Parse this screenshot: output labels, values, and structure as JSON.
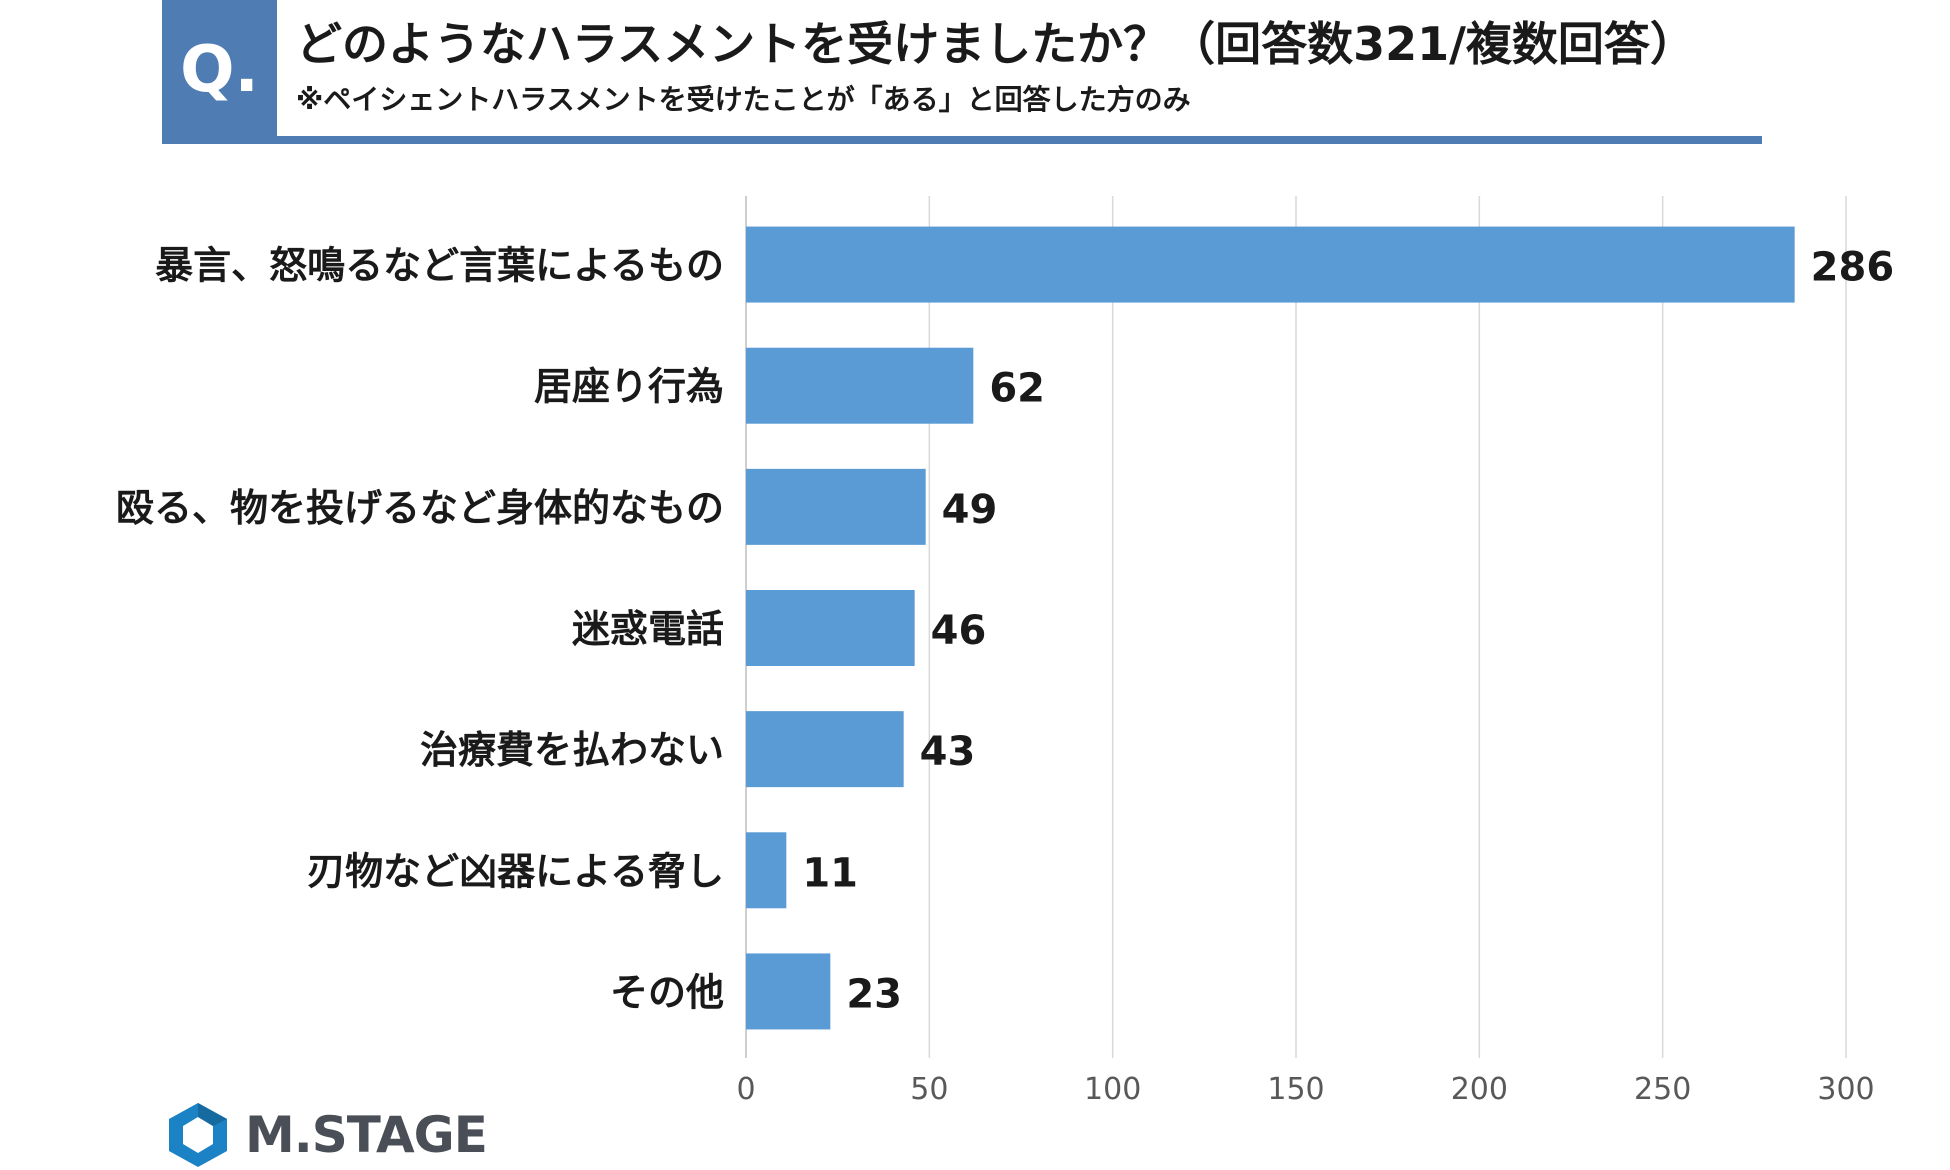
{
  "header": {
    "q_label": "Q.",
    "title": "どのようなハラスメントを受けましたか？（回答数321/複数回答）",
    "subtitle": "※ペイシェントハラスメントを受けたことが「ある」と回答した方のみ"
  },
  "chart_data": {
    "type": "bar",
    "orientation": "horizontal",
    "categories": [
      "暴言、怒鳴るなど言葉によるもの",
      "居座り行為",
      "殴る、物を投げるなど身体的なもの",
      "迷惑電話",
      "治療費を払わない",
      "刃物など凶器による脅し",
      "その他"
    ],
    "values": [
      286,
      62,
      49,
      46,
      43,
      11,
      23
    ],
    "xlim": [
      0,
      300
    ],
    "xticks": [
      0,
      50,
      100,
      150,
      200,
      250,
      300
    ],
    "grid": true,
    "bar_color": "#5b9bd5"
  },
  "brand": {
    "name": "M.STAGE",
    "accent_color": "#4f7db3",
    "logo_color": "#1b82c5"
  }
}
